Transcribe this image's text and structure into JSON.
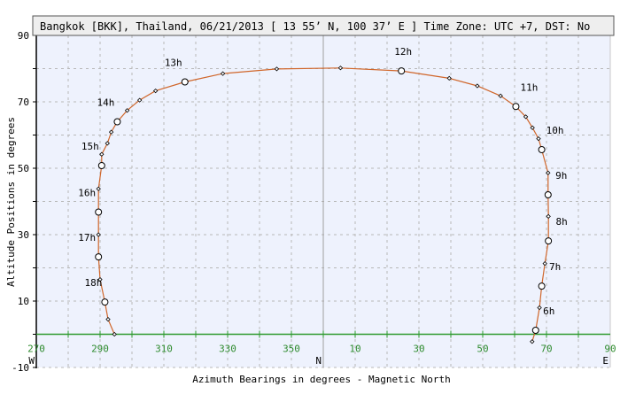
{
  "chart_data": {
    "type": "line",
    "title": "Bangkok [BKK], Thailand, 06/21/2013 [ 13 55’ N, 100 37’ E ] Time Zone: UTC +7, DST: No",
    "xlabel": "Azimuth Bearings in degrees - Magnetic North",
    "ylabel": "Altitude Positions in degrees",
    "x_axis_range": [
      270,
      90
    ],
    "x_wraps_through": 360,
    "x_tick_labels": [
      "270",
      "290",
      "310",
      "330",
      "350",
      "10",
      "30",
      "50",
      "70",
      "90"
    ],
    "x_direction_labels": [
      {
        "label": "W",
        "az": 270
      },
      {
        "label": "N",
        "az": 0
      },
      {
        "label": "E",
        "az": 90
      }
    ],
    "ylim": [
      -10,
      90
    ],
    "y_tick_labels": [
      "90",
      "70",
      "50",
      "30",
      "10",
      "-10"
    ],
    "grid": true,
    "colors": {
      "line": "#d0662a",
      "horizon": "#2e9a2e",
      "plot_bg": "#eef2fd",
      "grid": "#b8b8b8",
      "north_line": "#a0a0a0",
      "x_tick_text": "#2e8b2e"
    },
    "series": [
      {
        "points": [
          {
            "az": 65.5,
            "alt": -2.2
          },
          {
            "az": 66.6,
            "alt": 1.2,
            "hour": "6h"
          },
          {
            "az": 67.8,
            "alt": 8.0
          },
          {
            "az": 68.5,
            "alt": 14.5,
            "hour": "7h"
          },
          {
            "az": 69.5,
            "alt": 21.3
          },
          {
            "az": 70.6,
            "alt": 28.1,
            "hour": "8h"
          },
          {
            "az": 70.6,
            "alt": 35.5
          },
          {
            "az": 70.5,
            "alt": 42.0,
            "hour": "9h"
          },
          {
            "az": 70.5,
            "alt": 48.6
          },
          {
            "az": 68.5,
            "alt": 55.6,
            "hour": "10h"
          },
          {
            "az": 67.5,
            "alt": 58.9
          },
          {
            "az": 65.6,
            "alt": 62.2
          },
          {
            "az": 63.5,
            "alt": 65.5
          },
          {
            "az": 60.4,
            "alt": 68.6,
            "hour": "11h"
          },
          {
            "az": 55.6,
            "alt": 71.8
          },
          {
            "az": 48.3,
            "alt": 74.8
          },
          {
            "az": 39.5,
            "alt": 77.1
          },
          {
            "az": 24.5,
            "alt": 79.3,
            "hour": "12h"
          },
          {
            "az": 5.4,
            "alt": 80.2
          },
          {
            "az": 345.4,
            "alt": 79.9
          },
          {
            "az": 328.5,
            "alt": 78.5
          },
          {
            "az": 316.6,
            "alt": 76.0,
            "hour": "13h"
          },
          {
            "az": 307.4,
            "alt": 73.3
          },
          {
            "az": 302.4,
            "alt": 70.5
          },
          {
            "az": 298.5,
            "alt": 67.4
          },
          {
            "az": 295.4,
            "alt": 64.0,
            "hour": "14h"
          },
          {
            "az": 293.5,
            "alt": 60.9
          },
          {
            "az": 292.3,
            "alt": 57.5
          },
          {
            "az": 290.5,
            "alt": 54.2
          },
          {
            "az": 290.5,
            "alt": 50.8,
            "hour": "15h"
          },
          {
            "az": 289.5,
            "alt": 43.8
          },
          {
            "az": 289.5,
            "alt": 36.8,
            "hour": "16h"
          },
          {
            "az": 289.5,
            "alt": 30.0
          },
          {
            "az": 289.5,
            "alt": 23.3,
            "hour": "17h"
          },
          {
            "az": 290.0,
            "alt": 16.5
          },
          {
            "az": 291.5,
            "alt": 9.7,
            "hour": "18h"
          },
          {
            "az": 292.5,
            "alt": 4.5
          },
          {
            "az": 294.5,
            "alt": 0.0
          }
        ]
      }
    ]
  }
}
